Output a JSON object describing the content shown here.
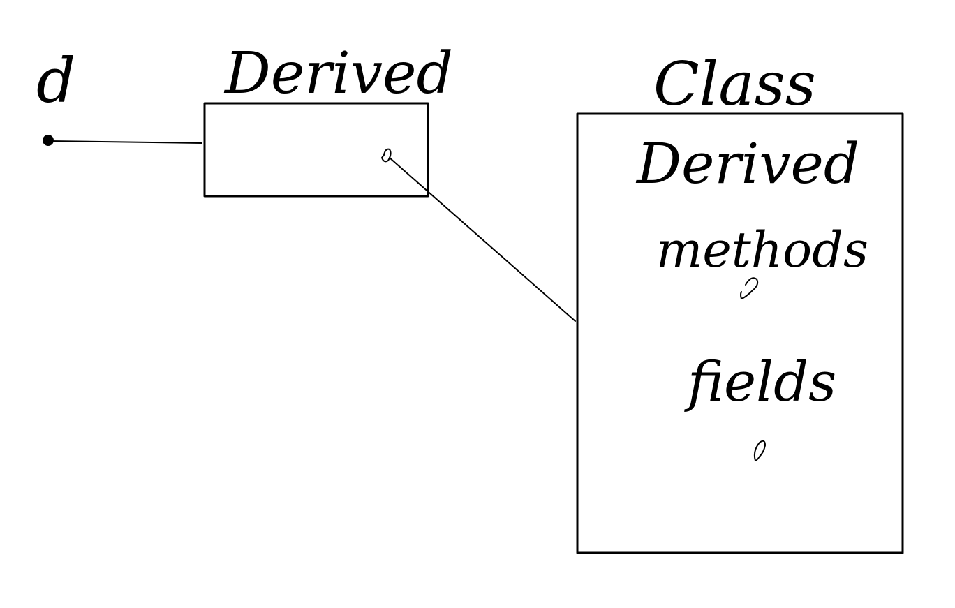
{
  "variable": {
    "label": "d"
  },
  "reference_object": {
    "label": "Derived"
  },
  "class_object": {
    "label": "Class",
    "lines": [
      "Derived",
      "methods",
      "fields"
    ]
  },
  "colors": {
    "ink": "#000000",
    "background": "#ffffff"
  }
}
